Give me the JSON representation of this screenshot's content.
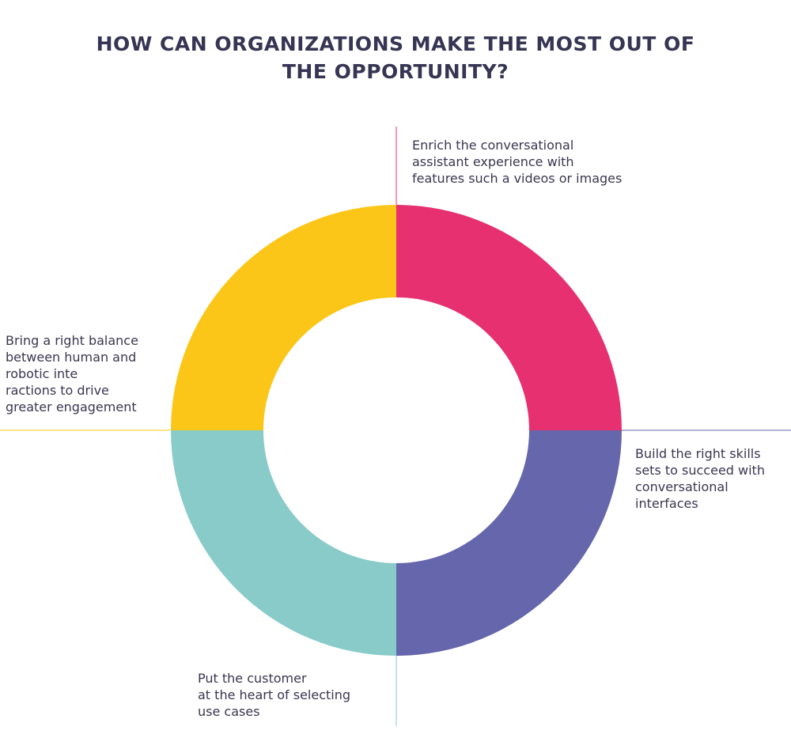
{
  "title": {
    "line1": "HOW CAN ORGANIZATIONS MAKE THE MOST OUT OF",
    "line2": "THE OPPORTUNITY?"
  },
  "colors": {
    "title": "#363553",
    "text": "#3a3650",
    "top_right_segment": "#e63070",
    "bottom_right_segment": "#6566ab",
    "bottom_left_segment": "#88cbc8",
    "top_left_segment": "#fbc617"
  },
  "segments": [
    {
      "id": "top-right",
      "color": "#e63070",
      "label_lines": [
        "Enrich the conversational",
        "assistant experience with",
        "features such a videos or images"
      ]
    },
    {
      "id": "bottom-right",
      "color": "#6566ab",
      "label_lines": [
        "Build the right skills",
        "sets to succeed with",
        "conversational",
        "interfaces"
      ]
    },
    {
      "id": "bottom-left",
      "color": "#88cbc8",
      "label_lines": [
        "Put the customer",
        "at the heart of selecting",
        "use cases"
      ]
    },
    {
      "id": "top-left",
      "color": "#fbc617",
      "label_lines": [
        "Bring a right balance",
        "between human and",
        "robotic inte",
        "ractions to drive",
        "greater engagement"
      ]
    }
  ]
}
